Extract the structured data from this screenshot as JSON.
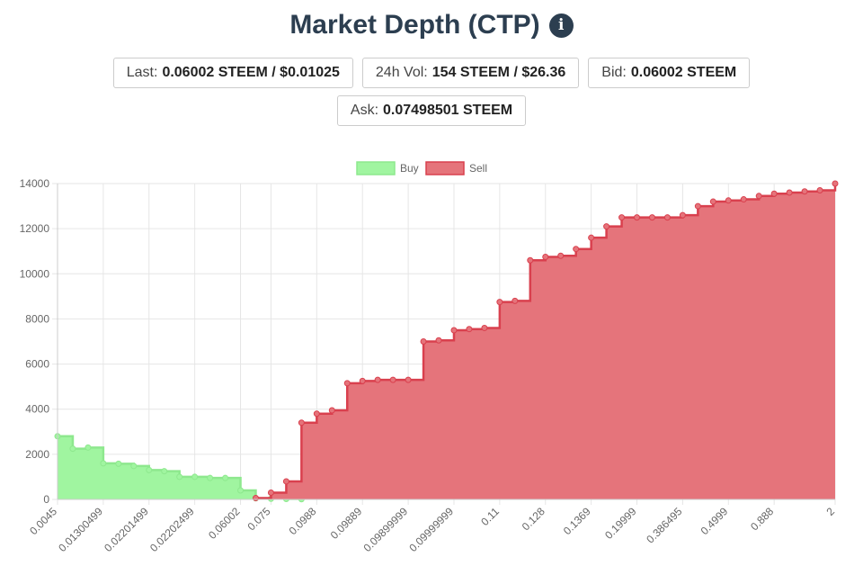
{
  "header": {
    "title": "Market Depth (CTP)",
    "info_icon": "info-icon"
  },
  "stats": [
    {
      "label": "Last:",
      "value": "0.06002 STEEM / $0.01025"
    },
    {
      "label": "24h Vol:",
      "value": "154 STEEM / $26.36"
    },
    {
      "label": "Bid:",
      "value": "0.06002 STEEM"
    },
    {
      "label": "Ask:",
      "value": "0.07498501 STEEM"
    }
  ],
  "colors": {
    "buy_fill": "#a0f5a0",
    "buy_line": "#8ee88e",
    "sell_fill": "#e5747b",
    "sell_line": "#d9404e",
    "title": "#2c3e50"
  },
  "chart_data": {
    "type": "area",
    "stepped": true,
    "legend": {
      "position": "top",
      "entries": [
        "Buy",
        "Sell"
      ]
    },
    "grid": true,
    "ylim": [
      0,
      14000
    ],
    "yticks": [
      0,
      2000,
      4000,
      6000,
      8000,
      10000,
      12000,
      14000
    ],
    "x_labels": [
      "0.0045",
      "0.01300499",
      "0.02201499",
      "0.02202499",
      "0.06002",
      "0.075",
      "0.0988",
      "0.09889",
      "0.09899999",
      "0.09999999",
      "0.11",
      "0.128",
      "0.1369",
      "0.19999",
      "0.386495",
      "0.4999",
      "0.888",
      "2"
    ],
    "x_label_positions": [
      0,
      3,
      6,
      9,
      12,
      14,
      17,
      20,
      23,
      26,
      29,
      32,
      35,
      38,
      41,
      44,
      47,
      51
    ],
    "points_count": 52,
    "series": [
      {
        "name": "Buy",
        "start_index": 0,
        "values": [
          2800,
          2250,
          2300,
          1600,
          1580,
          1480,
          1300,
          1250,
          1000,
          1000,
          950,
          950,
          400,
          50,
          30,
          20,
          10
        ]
      },
      {
        "name": "Sell",
        "start_index": 13,
        "values": [
          60,
          300,
          800,
          3400,
          3800,
          3950,
          5150,
          5250,
          5300,
          5300,
          5300,
          7000,
          7050,
          7500,
          7550,
          7600,
          8750,
          8800,
          10600,
          10750,
          10800,
          11100,
          11600,
          12100,
          12500,
          12500,
          12500,
          12500,
          12600,
          13000,
          13200,
          13250,
          13300,
          13450,
          13550,
          13600,
          13650,
          13700,
          14000
        ]
      }
    ]
  }
}
